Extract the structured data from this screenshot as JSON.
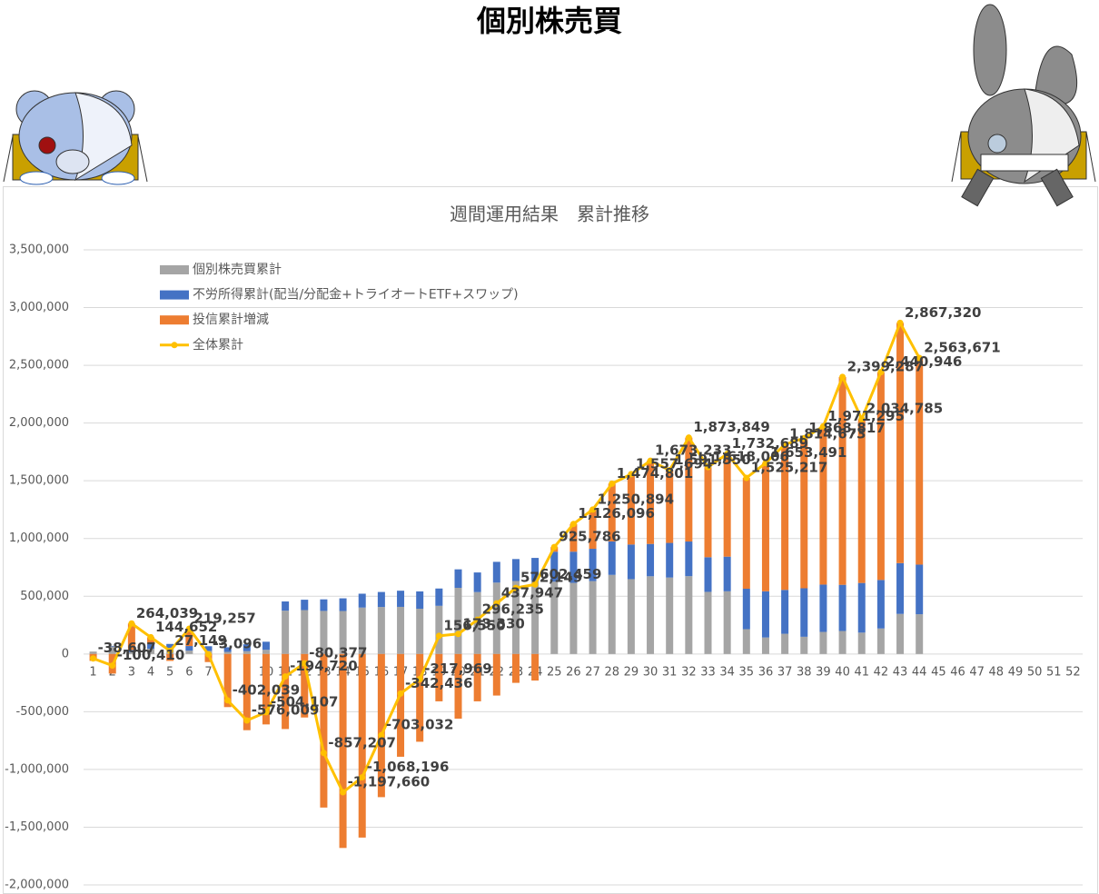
{
  "page_title": "個別株売買",
  "chart_data": {
    "type": "bar",
    "stacked": true,
    "title": "週間運用結果　累計推移",
    "categories": [
      "1",
      "2",
      "3",
      "4",
      "5",
      "6",
      "7",
      "8",
      "9",
      "10",
      "11",
      "12",
      "13",
      "14",
      "15",
      "16",
      "17",
      "18",
      "19",
      "20",
      "21",
      "22",
      "23",
      "24",
      "25",
      "26",
      "27",
      "28",
      "29",
      "30",
      "31",
      "32",
      "33",
      "34",
      "35",
      "36",
      "37",
      "38",
      "39",
      "40",
      "41",
      "42",
      "43",
      "44",
      "45",
      "46",
      "47",
      "48",
      "49",
      "50",
      "51",
      "52"
    ],
    "ylim": [
      -2000000,
      3500000
    ],
    "yticks": [
      {
        "value": -2000000,
        "label": "-2,000,000"
      },
      {
        "value": -1500000,
        "label": "-1,500,000"
      },
      {
        "value": -1000000,
        "label": "-1,000,000"
      },
      {
        "value": -500000,
        "label": "-500,000"
      },
      0,
      {
        "value": 500000,
        "label": "500,000"
      },
      {
        "value": 1000000,
        "label": "1,000,000"
      },
      {
        "value": 1500000,
        "label": "1,500,000"
      },
      {
        "value": 2000000,
        "label": "2,000,000"
      },
      {
        "value": 2500000,
        "label": "2,500,000"
      },
      {
        "value": 3000000,
        "label": "3,000,000"
      },
      {
        "value": 3500000,
        "label": "3,500,000"
      }
    ],
    "grid": true,
    "legend": "upper left",
    "series": [
      {
        "name": "個別株売買累計",
        "type": "bar",
        "color": "#a5a5a5",
        "values": [
          21000,
          65000,
          15000,
          45000,
          47000,
          29000,
          27000,
          18000,
          24000,
          36000,
          375000,
          380000,
          373000,
          372000,
          402000,
          407000,
          408000,
          392000,
          417000,
          573000,
          536000,
          618000,
          632000,
          632000,
          626000,
          616000,
          631000,
          685000,
          648000,
          673000,
          662000,
          674000,
          538000,
          543000,
          215000,
          143000,
          175000,
          149000,
          191000,
          199000,
          185000,
          221000,
          347000,
          344000,
          null,
          null,
          null,
          null,
          null,
          null,
          null,
          null
        ]
      },
      {
        "name": "不労所得累計(配当/分配金+トライオートETF+スワップ)",
        "type": "bar",
        "color": "#4472c4",
        "values": [
          0,
          5000,
          20000,
          40000,
          40000,
          40000,
          40000,
          40000,
          60000,
          70000,
          80000,
          90000,
          100000,
          110000,
          120000,
          130000,
          140000,
          150000,
          150000,
          160000,
          170000,
          180000,
          190000,
          200000,
          260000,
          270000,
          280000,
          290000,
          300000,
          280000,
          300000,
          300000,
          300000,
          300000,
          350000,
          400000,
          380000,
          420000,
          410000,
          400000,
          430000,
          420000,
          440000,
          430000,
          null,
          null,
          null,
          null,
          null,
          null,
          null,
          null
        ]
      },
      {
        "name": "投信累計増減",
        "type": "bar",
        "color": "#ed7d31",
        "values": [
          -60000,
          -170000,
          229000,
          60000,
          -60000,
          150000,
          -70000,
          -460000,
          -660000,
          -610000,
          -650000,
          -550000,
          -1330000,
          -1680000,
          -1590000,
          -1240000,
          -890000,
          -760000,
          -410000,
          -560000,
          -410000,
          -360000,
          -250000,
          -230000,
          40000,
          240000,
          340000,
          500000,
          610000,
          720000,
          630000,
          900000,
          780000,
          890000,
          960000,
          1110000,
          1260000,
          1300000,
          1370000,
          1800000,
          1420000,
          1800000,
          2080000,
          1790000,
          null,
          null,
          null,
          null,
          null,
          null,
          null,
          null
        ]
      },
      {
        "name": "全体累計",
        "type": "line",
        "color": "#ffc000",
        "values": [
          -38607,
          -100410,
          264039,
          144652,
          27149,
          219257,
          -3096,
          -402039,
          -576009,
          -504107,
          -194720,
          -80377,
          -857207,
          -1197660,
          -1068196,
          -703032,
          -342436,
          -217969,
          156550,
          173330,
          296235,
          437947,
          572149,
          602459,
          925786,
          1126096,
          1250894,
          1474801,
          1557694,
          1673233,
          1591550,
          1873849,
          1618006,
          1732689,
          1525217,
          1653491,
          1814673,
          1868817,
          1971295,
          2399287,
          2034785,
          2440946,
          2867320,
          2563671,
          null,
          null,
          null,
          null,
          null,
          null,
          null,
          null
        ],
        "value_labels": [
          "-38,607",
          "-100,410",
          "264,039",
          "144,652",
          "27,149",
          "219,257",
          "-3,096",
          "-402,039",
          "-576,009",
          "-504,107",
          "-194,720",
          "-80,377",
          "-857,207",
          "-1,197,660",
          "-1,068,196",
          "-703,032",
          "-342,436",
          "-217,969",
          "156,550",
          "173,330",
          "296,235",
          "437,947",
          "572,149",
          "602,459",
          "925,786",
          "1,126,096",
          "1,250,894",
          "1,474,801",
          "1,557,694",
          "1,673,233",
          "1,591,550",
          "1,873,849",
          "1,618,006",
          "1,732,689",
          "1,525,217",
          "1,653,491",
          "1,814,673",
          "1,868,817",
          "1,971,295",
          "2,399,287",
          "2,034,785",
          "2,440,946",
          "2,867,320",
          "2,563,671",
          null,
          null,
          null,
          null,
          null,
          null,
          null,
          null
        ]
      }
    ]
  }
}
